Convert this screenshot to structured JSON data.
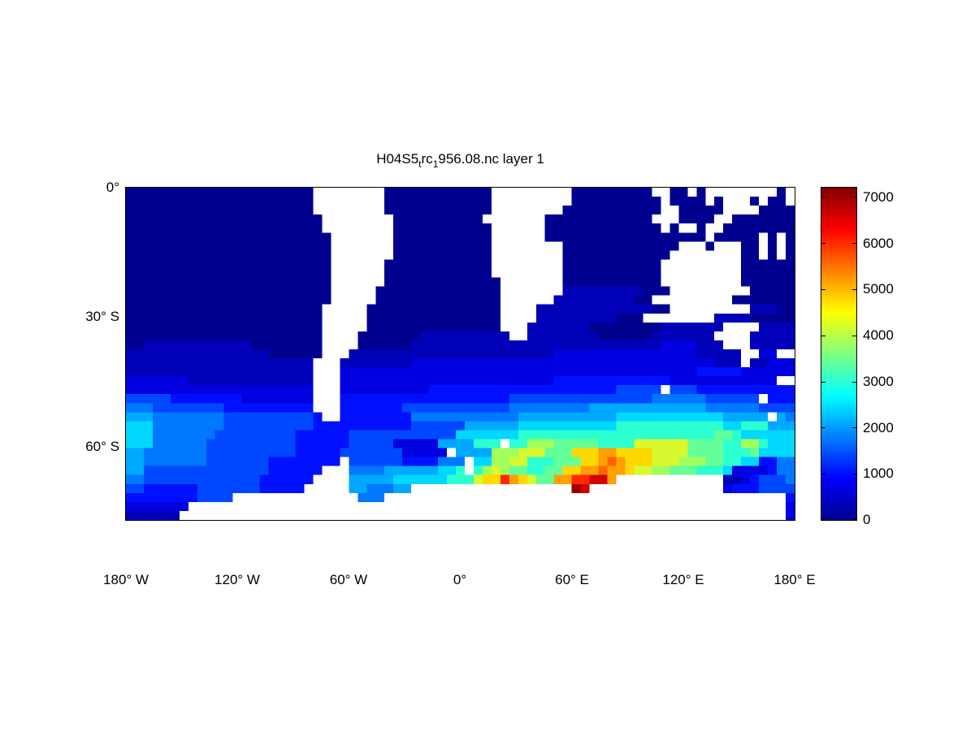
{
  "chart_data": {
    "type": "heatmap",
    "title": "H04S5_trc_1956.08.nc layer 1",
    "title_parts": [
      "H04S5",
      "t",
      "rc",
      "1",
      "956.08.nc layer 1"
    ],
    "x_ticks": [
      "180° W",
      "120° W",
      "60° W",
      "0°",
      "60° E",
      "120° E",
      "180° E"
    ],
    "y_ticks": [
      "0°",
      "30° S",
      "60° S"
    ],
    "lon_range_deg": [
      -180,
      180
    ],
    "lat_range_deg": [
      0,
      -77
    ],
    "land_color": "#ffffff",
    "colorbar": {
      "min": 0,
      "max": 7200,
      "ticks": [
        0,
        1000,
        2000,
        3000,
        4000,
        5000,
        6000,
        7000
      ],
      "colormap": "jet",
      "gradient_stops": [
        {
          "frac": 0.0,
          "color": "#00008f"
        },
        {
          "frac": 0.125,
          "color": "#0000ff"
        },
        {
          "frac": 0.375,
          "color": "#00ffff"
        },
        {
          "frac": 0.625,
          "color": "#ffff00"
        },
        {
          "frac": 0.875,
          "color": "#ff0000"
        },
        {
          "frac": 1.0,
          "color": "#800000"
        }
      ]
    },
    "palette": {
      ".": "#ffffff",
      "0": "#000090",
      "1": "#0000b8",
      "2": "#0000e0",
      "3": "#0010ff",
      "4": "#0048ff",
      "5": "#0078ff",
      "6": "#00a8ff",
      "7": "#00d8ff",
      "8": "#2cffd0",
      "9": "#64ff98",
      "g": "#a0ff5c",
      "y": "#d8f830",
      "Y": "#ffd800",
      "o": "#ffa000",
      "O": "#ff6400",
      "r": "#ff2800",
      "R": "#d40000",
      "D": "#9c0000"
    },
    "palette_values": {
      ".": null,
      "0": 150,
      "1": 450,
      "2": 700,
      "3": 950,
      "4": 1400,
      "5": 1800,
      "6": 2300,
      "7": 2750,
      "8": 3200,
      "9": 3650,
      "g": 4100,
      "y": 4500,
      "Y": 4900,
      "o": 5400,
      "O": 5900,
      "r": 6250,
      "R": 6700,
      "D": 7100
    },
    "grid": [
      "000000000000000000000........000000000000.........000000000..00.0........0..",
      "000000000000000000000........000000000000.........0000000000.0000.0...0.00..",
      "000000000000000000000........000000000000........00000000000..00000....0000.",
      "0000000000000000000000........0000000000.......000000000000...0000..0000000",
      "0000000000000000000000........00000000000......0000000000000.0..0..00000000",
      "00000000000000000000000.......00000000000......000000000000000000.00000.0.0",
      "00000000000000000000000.......00000000000........0000000000000...0...00.0.0",
      "00000000000000000000000.......00000000000........000000000000........00.0.0",
      "00000000000000000000000......000000000000........00000000000.........00000",
      "00000000000000000000000......000000000000........00000000000.........00000",
      "00000000000000000000000......0000000000000.......00000000000.........00000",
      "00000000000000000000000.....00000000000000.......111111111000.........00000",
      "00000000000000000000000.....00000000000000......11111111100.........00000",
      "0000000000000000000000.....000000000000000....111111111111100.........11100",
      "0000000000000000000000.....000000000000000....111111111000........11110",
      "0000000000000000000000.....000000000000000...1111111000000001111111....11110",
      "0000000000000000000000....00000001111111111..111111110000001111111....11111",
      "0011111111111100000000....00000011111111111111111111111111112222111...11111",
      "1111111111111111000000...11111111111111111111111222222222222222211111..22..2",
      "111111111111111111111...111111112222222222222222222222222222222222111.11222.2",
      "111111111111111111111...22222222222222222222222222222222222222223333322222222..2",
      "222222211111111111111...2222222222222222222222223333333333333222222222222..33",
      "222222222222222222222...222222222233333333333333333333344444 4443333333333333.333",
      "444443333333322222222...33333333333333333334444444444444444555555444444 3333",
      "555444444443333333333...333333344444444444455555555566666666666665555554444",
      "6665555555544444444443..333333335555555555556666666666677777777777766666 65555",
      "77755555555444444444433333333333444444666666777777777778888888888887788866666",
      "77755555554444444443333334444444444447777777888888888888888888888899877777",
      "777555555444444444433333344444222226666888 88ggg999998888yyyyyy999988gg877777",
      "665555555444444444433333444444422222 6666gggyyy999YYYooYYYYyyyy99998889777777",
      "665555555444444433333333 4444443333555 77ggyy888999YYoOoYYYyyyggg998877335556",
      "6644444444444444333333...5555666666778 8gyg998899YYooOooYyygg999888722223555",
      "554444444444444333333....66666777777888yYYroYy99oorrRRo............11234445",
      "44333333444444433333.....6655566..................DR...............233344",
      "333333334444..............555.............................................33",
      "2222222...................................................................2",
      "111111....................................................................2"
    ]
  }
}
